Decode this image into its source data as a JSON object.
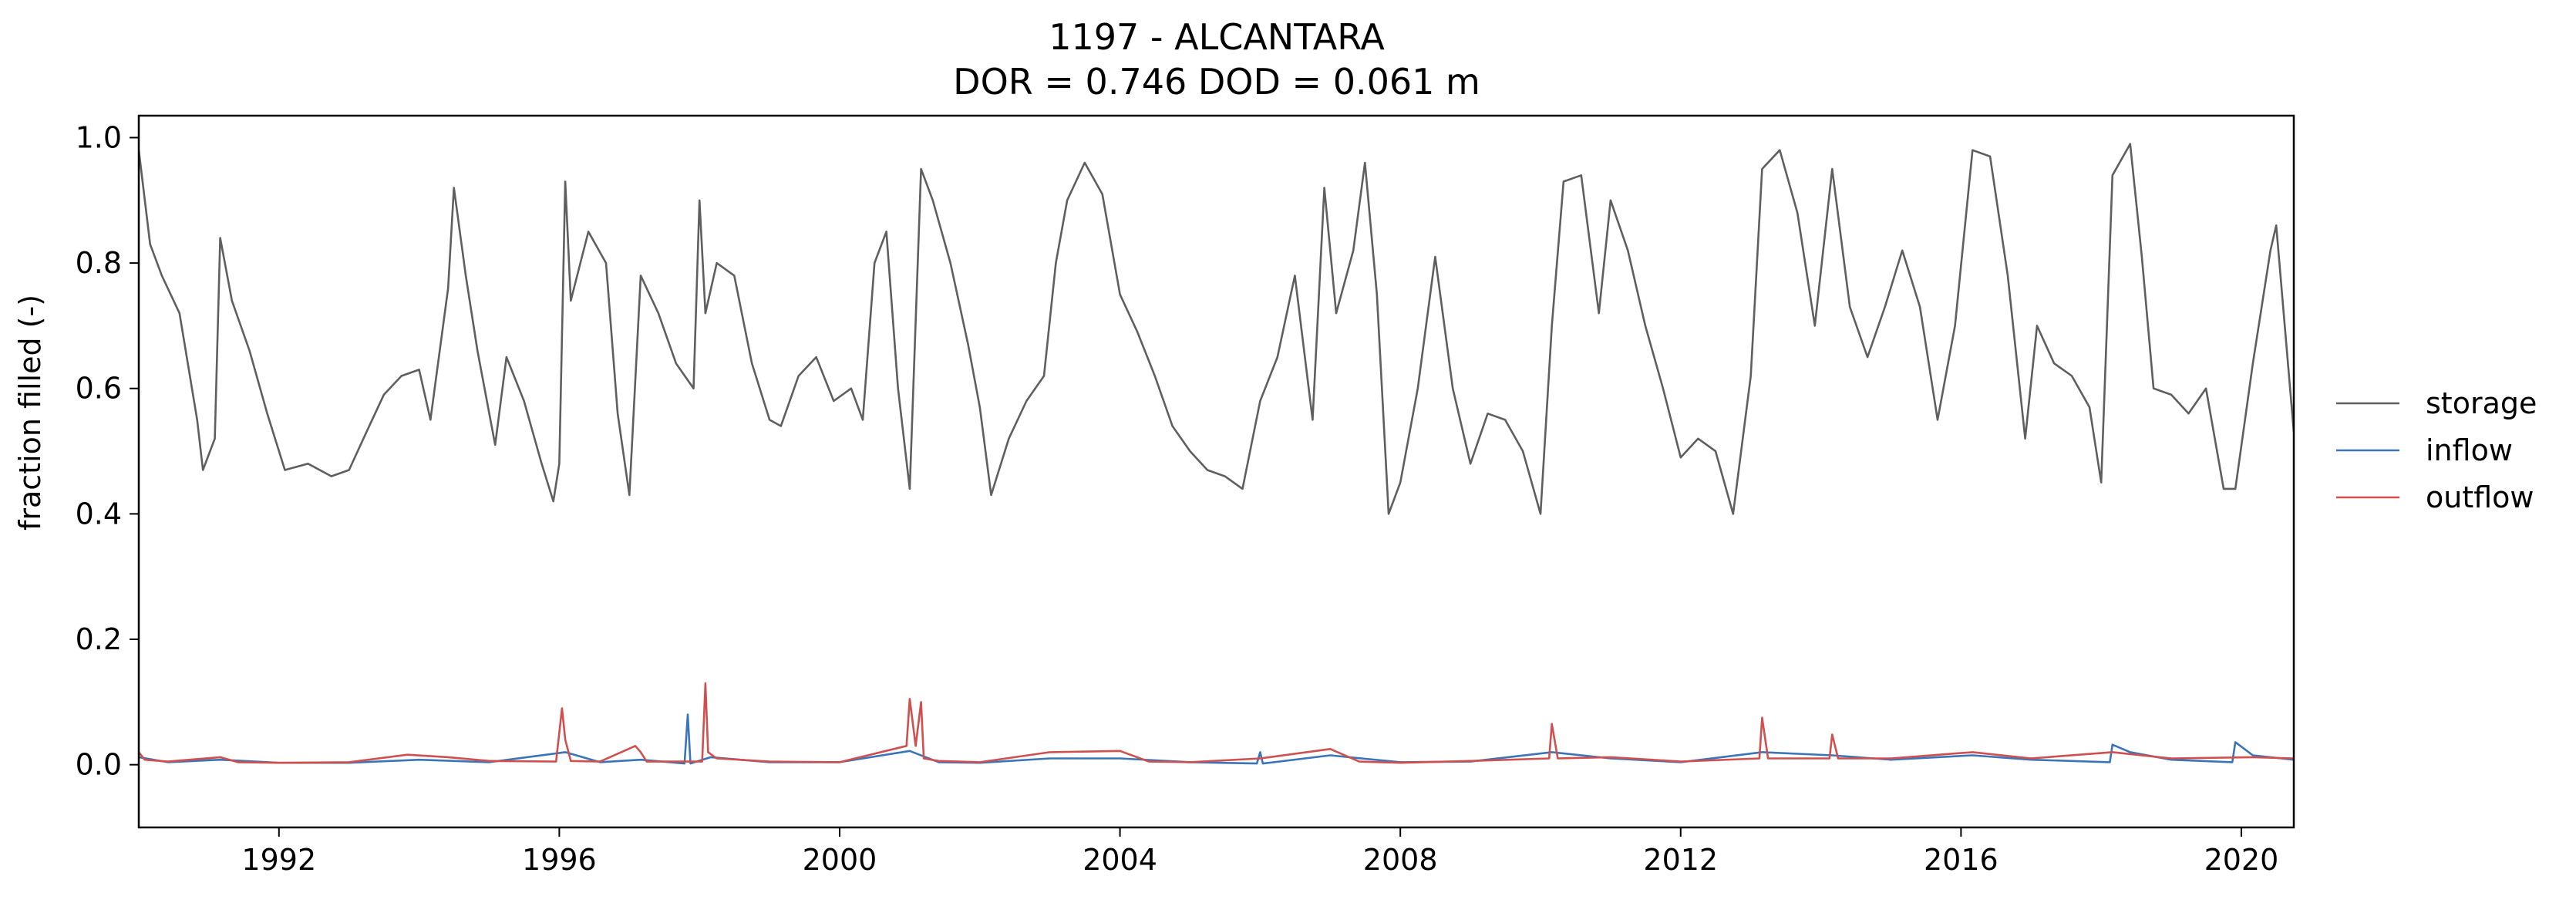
{
  "chart_data": {
    "type": "line",
    "title": "1197 - ALCANTARA",
    "subtitle": "DOR = 0.746  DOD = 0.061 m",
    "xlabel": "",
    "ylabel": "fraction filled (-)",
    "xlim": [
      "1990-01-01",
      "2020-10-01"
    ],
    "ylim": [
      -0.1,
      1.035
    ],
    "x_ticks": [
      1992,
      1996,
      2000,
      2004,
      2008,
      2012,
      2016,
      2020
    ],
    "x_tick_labels": [
      "1992",
      "1996",
      "2000",
      "2004",
      "2008",
      "2012",
      "2016",
      "2020"
    ],
    "y_ticks": [
      0.0,
      0.2,
      0.4,
      0.6,
      0.8,
      1.0
    ],
    "y_tick_labels": [
      "0.0",
      "0.2",
      "0.4",
      "0.6",
      "0.8",
      "1.0"
    ],
    "grid": false,
    "legend": {
      "placement": "right-outside"
    },
    "series": [
      {
        "name": "storage",
        "color": "#5f5f5f",
        "points": [
          [
            "1990-01-01",
            0.98
          ],
          [
            "1990-03-01",
            0.83
          ],
          [
            "1990-05-01",
            0.78
          ],
          [
            "1990-08-01",
            0.72
          ],
          [
            "1990-11-01",
            0.55
          ],
          [
            "1990-12-01",
            0.47
          ],
          [
            "1991-02-01",
            0.52
          ],
          [
            "1991-03-01",
            0.84
          ],
          [
            "1991-05-01",
            0.74
          ],
          [
            "1991-08-01",
            0.66
          ],
          [
            "1991-11-01",
            0.56
          ],
          [
            "1992-02-01",
            0.47
          ],
          [
            "1992-06-01",
            0.48
          ],
          [
            "1992-10-01",
            0.46
          ],
          [
            "1993-01-01",
            0.47
          ],
          [
            "1993-04-01",
            0.53
          ],
          [
            "1993-07-01",
            0.59
          ],
          [
            "1993-10-01",
            0.62
          ],
          [
            "1994-01-01",
            0.63
          ],
          [
            "1994-03-01",
            0.55
          ],
          [
            "1994-06-01",
            0.76
          ],
          [
            "1994-07-01",
            0.92
          ],
          [
            "1994-09-01",
            0.78
          ],
          [
            "1994-11-01",
            0.66
          ],
          [
            "1995-02-01",
            0.51
          ],
          [
            "1995-04-01",
            0.65
          ],
          [
            "1995-07-01",
            0.58
          ],
          [
            "1995-10-01",
            0.48
          ],
          [
            "1995-12-01",
            0.42
          ],
          [
            "1996-01-01",
            0.48
          ],
          [
            "1996-02-01",
            0.93
          ],
          [
            "1996-03-01",
            0.74
          ],
          [
            "1996-06-01",
            0.85
          ],
          [
            "1996-09-01",
            0.8
          ],
          [
            "1996-11-01",
            0.56
          ],
          [
            "1997-01-01",
            0.43
          ],
          [
            "1997-03-01",
            0.78
          ],
          [
            "1997-06-01",
            0.72
          ],
          [
            "1997-09-01",
            0.64
          ],
          [
            "1997-12-01",
            0.6
          ],
          [
            "1998-01-01",
            0.9
          ],
          [
            "1998-02-01",
            0.72
          ],
          [
            "1998-04-01",
            0.8
          ],
          [
            "1998-07-01",
            0.78
          ],
          [
            "1998-10-01",
            0.64
          ],
          [
            "1999-01-01",
            0.55
          ],
          [
            "1999-03-01",
            0.54
          ],
          [
            "1999-06-01",
            0.62
          ],
          [
            "1999-09-01",
            0.65
          ],
          [
            "1999-12-01",
            0.58
          ],
          [
            "2000-03-01",
            0.6
          ],
          [
            "2000-05-01",
            0.55
          ],
          [
            "2000-07-01",
            0.8
          ],
          [
            "2000-09-01",
            0.85
          ],
          [
            "2000-11-01",
            0.6
          ],
          [
            "2001-01-01",
            0.44
          ],
          [
            "2001-03-01",
            0.95
          ],
          [
            "2001-05-01",
            0.9
          ],
          [
            "2001-08-01",
            0.8
          ],
          [
            "2001-11-01",
            0.67
          ],
          [
            "2002-01-01",
            0.57
          ],
          [
            "2002-03-01",
            0.43
          ],
          [
            "2002-06-01",
            0.52
          ],
          [
            "2002-09-01",
            0.58
          ],
          [
            "2002-12-01",
            0.62
          ],
          [
            "2003-02-01",
            0.8
          ],
          [
            "2003-04-01",
            0.9
          ],
          [
            "2003-07-01",
            0.96
          ],
          [
            "2003-10-01",
            0.91
          ],
          [
            "2004-01-01",
            0.75
          ],
          [
            "2004-04-01",
            0.69
          ],
          [
            "2004-07-01",
            0.62
          ],
          [
            "2004-10-01",
            0.54
          ],
          [
            "2005-01-01",
            0.5
          ],
          [
            "2005-04-01",
            0.47
          ],
          [
            "2005-07-01",
            0.46
          ],
          [
            "2005-10-01",
            0.44
          ],
          [
            "2006-01-01",
            0.58
          ],
          [
            "2006-04-01",
            0.65
          ],
          [
            "2006-07-01",
            0.78
          ],
          [
            "2006-10-01",
            0.55
          ],
          [
            "2006-12-01",
            0.92
          ],
          [
            "2007-02-01",
            0.72
          ],
          [
            "2007-05-01",
            0.82
          ],
          [
            "2007-07-01",
            0.96
          ],
          [
            "2007-09-01",
            0.75
          ],
          [
            "2007-11-01",
            0.4
          ],
          [
            "2008-01-01",
            0.45
          ],
          [
            "2008-04-01",
            0.6
          ],
          [
            "2008-07-01",
            0.81
          ],
          [
            "2008-10-01",
            0.6
          ],
          [
            "2009-01-01",
            0.48
          ],
          [
            "2009-04-01",
            0.56
          ],
          [
            "2009-07-01",
            0.55
          ],
          [
            "2009-10-01",
            0.5
          ],
          [
            "2010-01-01",
            0.4
          ],
          [
            "2010-03-01",
            0.7
          ],
          [
            "2010-05-01",
            0.93
          ],
          [
            "2010-08-01",
            0.94
          ],
          [
            "2010-11-01",
            0.72
          ],
          [
            "2011-01-01",
            0.9
          ],
          [
            "2011-04-01",
            0.82
          ],
          [
            "2011-07-01",
            0.7
          ],
          [
            "2011-10-01",
            0.6
          ],
          [
            "2012-01-01",
            0.49
          ],
          [
            "2012-04-01",
            0.52
          ],
          [
            "2012-07-01",
            0.5
          ],
          [
            "2012-10-01",
            0.4
          ],
          [
            "2013-01-01",
            0.62
          ],
          [
            "2013-03-01",
            0.95
          ],
          [
            "2013-06-01",
            0.98
          ],
          [
            "2013-09-01",
            0.88
          ],
          [
            "2013-12-01",
            0.7
          ],
          [
            "2014-03-01",
            0.95
          ],
          [
            "2014-06-01",
            0.73
          ],
          [
            "2014-09-01",
            0.65
          ],
          [
            "2014-12-01",
            0.73
          ],
          [
            "2015-03-01",
            0.82
          ],
          [
            "2015-06-01",
            0.73
          ],
          [
            "2015-09-01",
            0.55
          ],
          [
            "2015-12-01",
            0.7
          ],
          [
            "2016-03-01",
            0.98
          ],
          [
            "2016-06-01",
            0.97
          ],
          [
            "2016-09-01",
            0.78
          ],
          [
            "2016-12-01",
            0.52
          ],
          [
            "2017-02-01",
            0.7
          ],
          [
            "2017-05-01",
            0.64
          ],
          [
            "2017-08-01",
            0.62
          ],
          [
            "2017-11-01",
            0.57
          ],
          [
            "2018-01-01",
            0.45
          ],
          [
            "2018-03-01",
            0.94
          ],
          [
            "2018-06-01",
            0.99
          ],
          [
            "2018-08-01",
            0.81
          ],
          [
            "2018-10-01",
            0.6
          ],
          [
            "2019-01-01",
            0.59
          ],
          [
            "2019-04-01",
            0.56
          ],
          [
            "2019-07-01",
            0.6
          ],
          [
            "2019-10-01",
            0.44
          ],
          [
            "2019-12-01",
            0.44
          ],
          [
            "2020-03-01",
            0.64
          ],
          [
            "2020-06-01",
            0.82
          ],
          [
            "2020-07-01",
            0.86
          ],
          [
            "2020-10-01",
            0.53
          ]
        ]
      },
      {
        "name": "inflow",
        "color": "#3a75b9",
        "points": [
          [
            "1990-01-01",
            0.012
          ],
          [
            "1990-06-01",
            0.004
          ],
          [
            "1991-03-01",
            0.008
          ],
          [
            "1992-01-01",
            0.003
          ],
          [
            "1993-01-01",
            0.003
          ],
          [
            "1994-01-01",
            0.008
          ],
          [
            "1995-01-01",
            0.004
          ],
          [
            "1996-02-01",
            0.02
          ],
          [
            "1996-08-01",
            0.004
          ],
          [
            "1997-03-01",
            0.008
          ],
          [
            "1997-10-15",
            0.002
          ],
          [
            "1997-11-01",
            0.08
          ],
          [
            "1997-11-15",
            0.002
          ],
          [
            "1998-03-01",
            0.012
          ],
          [
            "1999-01-01",
            0.004
          ],
          [
            "2000-01-01",
            0.004
          ],
          [
            "2001-01-01",
            0.022
          ],
          [
            "2001-06-01",
            0.004
          ],
          [
            "2002-01-01",
            0.003
          ],
          [
            "2003-01-01",
            0.01
          ],
          [
            "2004-01-01",
            0.01
          ],
          [
            "2005-01-01",
            0.004
          ],
          [
            "2005-12-15",
            0.002
          ],
          [
            "2006-01-01",
            0.02
          ],
          [
            "2006-01-15",
            0.002
          ],
          [
            "2007-01-01",
            0.015
          ],
          [
            "2008-01-01",
            0.004
          ],
          [
            "2009-01-01",
            0.005
          ],
          [
            "2010-03-01",
            0.02
          ],
          [
            "2011-01-01",
            0.01
          ],
          [
            "2012-01-01",
            0.004
          ],
          [
            "2013-03-01",
            0.02
          ],
          [
            "2014-03-01",
            0.015
          ],
          [
            "2015-01-01",
            0.008
          ],
          [
            "2016-03-01",
            0.015
          ],
          [
            "2017-01-01",
            0.008
          ],
          [
            "2018-02-15",
            0.004
          ],
          [
            "2018-03-01",
            0.032
          ],
          [
            "2018-06-01",
            0.02
          ],
          [
            "2019-01-01",
            0.008
          ],
          [
            "2019-11-15",
            0.004
          ],
          [
            "2019-12-01",
            0.036
          ],
          [
            "2020-03-01",
            0.015
          ],
          [
            "2020-10-01",
            0.008
          ]
        ]
      },
      {
        "name": "outflow",
        "color": "#d04f4f",
        "points": [
          [
            "1990-01-01",
            0.02
          ],
          [
            "1990-02-01",
            0.008
          ],
          [
            "1990-06-01",
            0.005
          ],
          [
            "1991-03-01",
            0.012
          ],
          [
            "1991-06-01",
            0.004
          ],
          [
            "1992-01-01",
            0.003
          ],
          [
            "1993-01-01",
            0.004
          ],
          [
            "1993-11-01",
            0.016
          ],
          [
            "1994-06-01",
            0.012
          ],
          [
            "1995-01-01",
            0.006
          ],
          [
            "1995-12-15",
            0.005
          ],
          [
            "1996-01-15",
            0.09
          ],
          [
            "1996-02-01",
            0.04
          ],
          [
            "1996-03-01",
            0.006
          ],
          [
            "1996-08-01",
            0.005
          ],
          [
            "1997-02-01",
            0.03
          ],
          [
            "1997-03-01",
            0.02
          ],
          [
            "1997-04-01",
            0.005
          ],
          [
            "1998-01-15",
            0.005
          ],
          [
            "1998-02-01",
            0.13
          ],
          [
            "1998-02-15",
            0.02
          ],
          [
            "1998-04-01",
            0.01
          ],
          [
            "1999-01-01",
            0.005
          ],
          [
            "2000-01-01",
            0.004
          ],
          [
            "2000-12-15",
            0.03
          ],
          [
            "2001-01-01",
            0.105
          ],
          [
            "2001-02-01",
            0.03
          ],
          [
            "2001-03-01",
            0.1
          ],
          [
            "2001-03-15",
            0.01
          ],
          [
            "2001-06-01",
            0.006
          ],
          [
            "2002-01-01",
            0.004
          ],
          [
            "2003-01-01",
            0.02
          ],
          [
            "2004-01-01",
            0.022
          ],
          [
            "2004-06-01",
            0.005
          ],
          [
            "2005-01-01",
            0.004
          ],
          [
            "2006-01-01",
            0.01
          ],
          [
            "2007-01-01",
            0.025
          ],
          [
            "2007-06-01",
            0.005
          ],
          [
            "2008-01-01",
            0.003
          ],
          [
            "2009-01-01",
            0.006
          ],
          [
            "2010-02-15",
            0.01
          ],
          [
            "2010-03-01",
            0.065
          ],
          [
            "2010-04-01",
            0.01
          ],
          [
            "2011-01-01",
            0.012
          ],
          [
            "2012-01-01",
            0.005
          ],
          [
            "2013-02-15",
            0.01
          ],
          [
            "2013-03-01",
            0.075
          ],
          [
            "2013-04-01",
            0.01
          ],
          [
            "2014-02-15",
            0.01
          ],
          [
            "2014-03-01",
            0.048
          ],
          [
            "2014-04-01",
            0.01
          ],
          [
            "2015-01-01",
            0.01
          ],
          [
            "2016-03-01",
            0.02
          ],
          [
            "2017-01-01",
            0.01
          ],
          [
            "2018-03-01",
            0.02
          ],
          [
            "2019-01-01",
            0.01
          ],
          [
            "2020-03-01",
            0.012
          ],
          [
            "2020-10-01",
            0.01
          ]
        ]
      }
    ]
  }
}
